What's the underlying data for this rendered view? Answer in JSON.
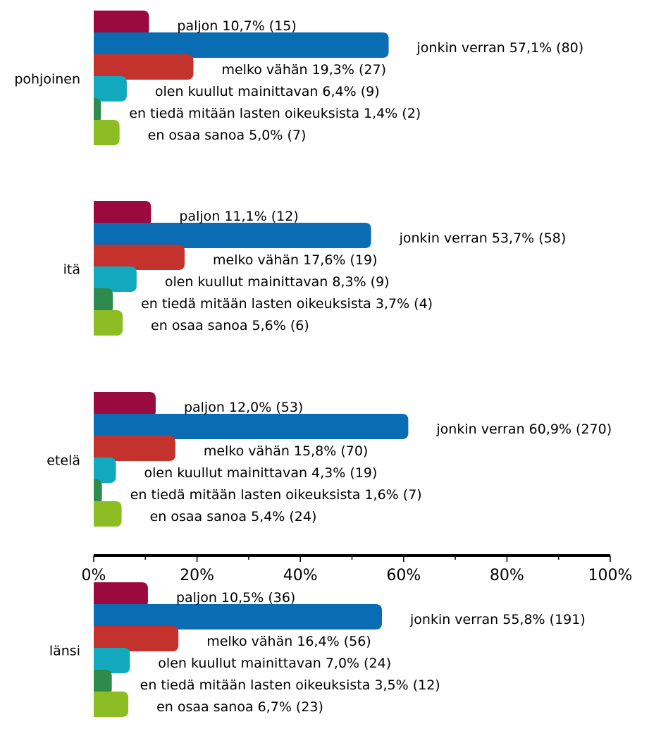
{
  "colors": {
    "paljon": "#9b0a3e",
    "jonkin_verran": "#0a6db3",
    "melko_vahan": "#c4322d",
    "olen_kuullut": "#12a9be",
    "en_tieda": "#2f8a4e",
    "en_osaa": "#8cbd24",
    "axis": "#000000"
  },
  "chart_data": {
    "type": "bar",
    "orientation": "horizontal",
    "x_axis": {
      "range": [
        0,
        100
      ],
      "ticks": [
        "0%",
        "20%",
        "40%",
        "60%",
        "80%",
        "100%"
      ],
      "minor_ticks_per_major": 2
    },
    "grid": false,
    "legend": "none",
    "groups": [
      {
        "name": "pohjoinen",
        "bars": [
          {
            "label": "paljon 10,7% (15)",
            "value": 10.7,
            "color_key": "paljon"
          },
          {
            "label": "jonkin verran 57,1% (80)",
            "value": 57.1,
            "color_key": "jonkin_verran"
          },
          {
            "label": "melko vähän 19,3% (27)",
            "value": 19.3,
            "color_key": "melko_vahan"
          },
          {
            "label": "olen kuullut mainittavan 6,4% (9)",
            "value": 6.4,
            "color_key": "olen_kuullut"
          },
          {
            "label": "en tiedä mitään lasten oikeuksista 1,4% (2)",
            "value": 1.4,
            "color_key": "en_tieda"
          },
          {
            "label": "en osaa sanoa 5,0% (7)",
            "value": 5.0,
            "color_key": "en_osaa"
          }
        ]
      },
      {
        "name": "itä",
        "bars": [
          {
            "label": "paljon 11,1% (12)",
            "value": 11.1,
            "color_key": "paljon"
          },
          {
            "label": "jonkin verran 53,7% (58)",
            "value": 53.7,
            "color_key": "jonkin_verran"
          },
          {
            "label": "melko vähän 17,6% (19)",
            "value": 17.6,
            "color_key": "melko_vahan"
          },
          {
            "label": "olen kuullut mainittavan 8,3% (9)",
            "value": 8.3,
            "color_key": "olen_kuullut"
          },
          {
            "label": "en tiedä mitään lasten oikeuksista 3,7% (4)",
            "value": 3.7,
            "color_key": "en_tieda"
          },
          {
            "label": "en osaa sanoa 5,6% (6)",
            "value": 5.6,
            "color_key": "en_osaa"
          }
        ]
      },
      {
        "name": "etelä",
        "bars": [
          {
            "label": "paljon 12,0% (53)",
            "value": 12.0,
            "color_key": "paljon"
          },
          {
            "label": "jonkin verran 60,9% (270)",
            "value": 60.9,
            "color_key": "jonkin_verran"
          },
          {
            "label": "melko vähän 15,8% (70)",
            "value": 15.8,
            "color_key": "melko_vahan"
          },
          {
            "label": "olen kuullut mainittavan 4,3% (19)",
            "value": 4.3,
            "color_key": "olen_kuullut"
          },
          {
            "label": "en tiedä mitään lasten oikeuksista 1,6% (7)",
            "value": 1.6,
            "color_key": "en_tieda"
          },
          {
            "label": "en osaa sanoa 5,4% (24)",
            "value": 5.4,
            "color_key": "en_osaa"
          }
        ]
      },
      {
        "name": "länsi",
        "bars": [
          {
            "label": "paljon 10,5% (36)",
            "value": 10.5,
            "color_key": "paljon"
          },
          {
            "label": "jonkin verran 55,8% (191)",
            "value": 55.8,
            "color_key": "jonkin_verran"
          },
          {
            "label": "melko vähän 16,4% (56)",
            "value": 16.4,
            "color_key": "melko_vahan"
          },
          {
            "label": "olen kuullut mainittavan 7,0% (24)",
            "value": 7.0,
            "color_key": "olen_kuullut"
          },
          {
            "label": "en tiedä mitään lasten oikeuksista 3,5% (12)",
            "value": 3.5,
            "color_key": "en_tieda"
          },
          {
            "label": "en osaa sanoa 6,7% (23)",
            "value": 6.7,
            "color_key": "en_osaa"
          }
        ]
      }
    ]
  }
}
